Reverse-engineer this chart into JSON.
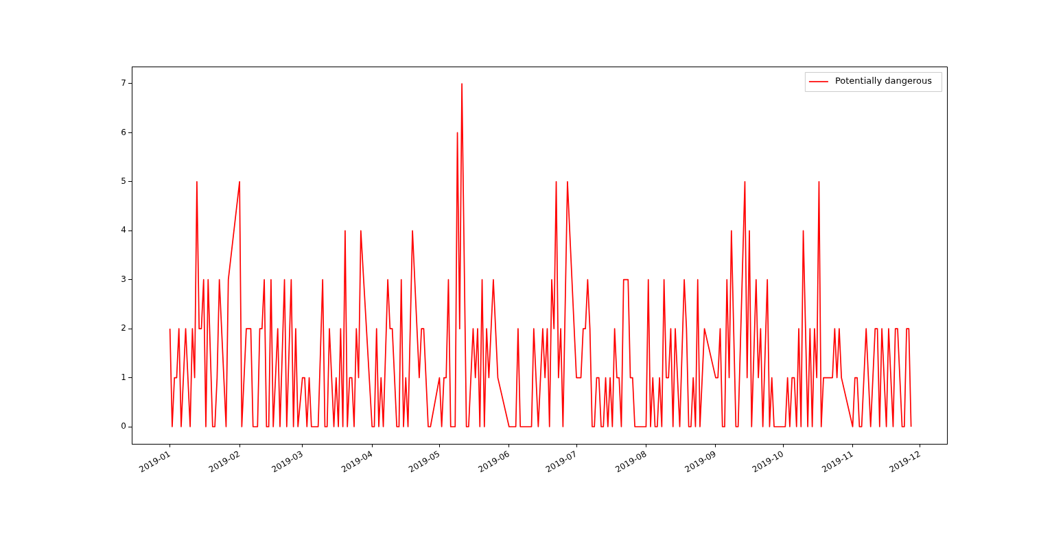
{
  "chart_data": {
    "type": "line",
    "legend": "top right",
    "grid": false,
    "x": [
      "2019-01-01",
      "2019-01-02",
      "2019-01-03",
      "2019-01-04",
      "2019-01-05",
      "2019-01-06",
      "2019-01-08",
      "2019-01-10",
      "2019-01-11",
      "2019-01-12",
      "2019-01-13",
      "2019-01-14",
      "2019-01-15",
      "2019-01-16",
      "2019-01-17",
      "2019-01-18",
      "2019-01-20",
      "2019-01-21",
      "2019-01-22",
      "2019-01-23",
      "2019-01-26",
      "2019-01-27",
      "2019-02-01",
      "2019-02-02",
      "2019-02-04",
      "2019-02-06",
      "2019-02-07",
      "2019-02-09",
      "2019-02-10",
      "2019-02-11",
      "2019-02-12",
      "2019-02-13",
      "2019-02-14",
      "2019-02-15",
      "2019-02-16",
      "2019-02-18",
      "2019-02-19",
      "2019-02-21",
      "2019-02-22",
      "2019-02-24",
      "2019-02-25",
      "2019-02-26",
      "2019-02-27",
      "2019-03-01",
      "2019-03-02",
      "2019-03-03",
      "2019-03-04",
      "2019-03-05",
      "2019-03-08",
      "2019-03-10",
      "2019-03-11",
      "2019-03-12",
      "2019-03-13",
      "2019-03-15",
      "2019-03-16",
      "2019-03-17",
      "2019-03-18",
      "2019-03-19",
      "2019-03-20",
      "2019-03-21",
      "2019-03-22",
      "2019-03-23",
      "2019-03-24",
      "2019-03-25",
      "2019-03-26",
      "2019-03-27",
      "2019-04-01",
      "2019-04-02",
      "2019-04-03",
      "2019-04-04",
      "2019-04-05",
      "2019-04-06",
      "2019-04-08",
      "2019-04-09",
      "2019-04-10",
      "2019-04-12",
      "2019-04-13",
      "2019-04-14",
      "2019-04-15",
      "2019-04-16",
      "2019-04-17",
      "2019-04-19",
      "2019-04-22",
      "2019-04-23",
      "2019-04-24",
      "2019-04-26",
      "2019-04-27",
      "2019-05-01",
      "2019-05-02",
      "2019-05-03",
      "2019-05-04",
      "2019-05-05",
      "2019-05-06",
      "2019-05-08",
      "2019-05-09",
      "2019-05-10",
      "2019-05-11",
      "2019-05-13",
      "2019-05-14",
      "2019-05-16",
      "2019-05-17",
      "2019-05-18",
      "2019-05-19",
      "2019-05-20",
      "2019-05-21",
      "2019-05-22",
      "2019-05-23",
      "2019-05-25",
      "2019-05-27",
      "2019-06-01",
      "2019-06-04",
      "2019-06-05",
      "2019-06-06",
      "2019-06-11",
      "2019-06-12",
      "2019-06-14",
      "2019-06-16",
      "2019-06-17",
      "2019-06-18",
      "2019-06-19",
      "2019-06-20",
      "2019-06-21",
      "2019-06-22",
      "2019-06-23",
      "2019-06-24",
      "2019-06-25",
      "2019-06-27",
      "2019-07-01",
      "2019-07-03",
      "2019-07-04",
      "2019-07-05",
      "2019-07-06",
      "2019-07-07",
      "2019-07-08",
      "2019-07-09",
      "2019-07-10",
      "2019-07-11",
      "2019-07-12",
      "2019-07-13",
      "2019-07-14",
      "2019-07-15",
      "2019-07-16",
      "2019-07-17",
      "2019-07-18",
      "2019-07-19",
      "2019-07-20",
      "2019-07-21",
      "2019-07-22",
      "2019-07-24",
      "2019-07-25",
      "2019-07-26",
      "2019-07-27",
      "2019-08-01",
      "2019-08-02",
      "2019-08-03",
      "2019-08-04",
      "2019-08-05",
      "2019-08-06",
      "2019-08-07",
      "2019-08-08",
      "2019-08-09",
      "2019-08-10",
      "2019-08-11",
      "2019-08-12",
      "2019-08-13",
      "2019-08-14",
      "2019-08-16",
      "2019-08-18",
      "2019-08-19",
      "2019-08-20",
      "2019-08-21",
      "2019-08-22",
      "2019-08-23",
      "2019-08-24",
      "2019-08-25",
      "2019-08-27",
      "2019-09-01",
      "2019-09-02",
      "2019-09-03",
      "2019-09-04",
      "2019-09-05",
      "2019-09-06",
      "2019-09-07",
      "2019-09-08",
      "2019-09-10",
      "2019-09-11",
      "2019-09-14",
      "2019-09-15",
      "2019-09-16",
      "2019-09-17",
      "2019-09-19",
      "2019-09-20",
      "2019-09-21",
      "2019-09-22",
      "2019-09-24",
      "2019-09-25",
      "2019-09-26",
      "2019-09-27",
      "2019-10-02",
      "2019-10-03",
      "2019-10-04",
      "2019-10-05",
      "2019-10-06",
      "2019-10-07",
      "2019-10-08",
      "2019-10-09",
      "2019-10-10",
      "2019-10-12",
      "2019-10-13",
      "2019-10-14",
      "2019-10-15",
      "2019-10-16",
      "2019-10-17",
      "2019-10-18",
      "2019-10-19",
      "2019-10-23",
      "2019-10-24",
      "2019-10-25",
      "2019-10-26",
      "2019-10-27",
      "2019-11-01",
      "2019-11-02",
      "2019-11-03",
      "2019-11-04",
      "2019-11-05",
      "2019-11-07",
      "2019-11-09",
      "2019-11-11",
      "2019-11-12",
      "2019-11-13",
      "2019-11-14",
      "2019-11-16",
      "2019-11-17",
      "2019-11-19",
      "2019-11-20",
      "2019-11-21",
      "2019-11-23",
      "2019-11-24",
      "2019-11-25",
      "2019-11-26",
      "2019-11-27"
    ],
    "series": [
      {
        "name": "Potentially dangerous",
        "color": "#ff0000",
        "values": [
          2,
          0,
          1,
          1,
          2,
          0,
          2,
          0,
          2,
          1,
          5,
          2,
          2,
          3,
          0,
          3,
          0,
          0,
          1,
          3,
          0,
          3,
          5,
          0,
          2,
          2,
          0,
          0,
          2,
          2,
          3,
          0,
          0,
          3,
          0,
          2,
          0,
          3,
          0,
          3,
          0,
          2,
          0,
          1,
          1,
          0,
          1,
          0,
          0,
          3,
          0,
          0,
          2,
          0,
          1,
          0,
          2,
          0,
          4,
          0,
          1,
          1,
          0,
          2,
          1,
          4,
          0,
          0,
          2,
          0,
          1,
          0,
          3,
          2,
          2,
          0,
          0,
          3,
          0,
          1,
          0,
          4,
          1,
          2,
          2,
          0,
          0,
          1,
          0,
          1,
          1,
          3,
          0,
          0,
          6,
          2,
          7,
          0,
          0,
          2,
          1,
          2,
          0,
          3,
          0,
          2,
          1,
          3,
          1,
          0,
          0,
          2,
          0,
          0,
          2,
          0,
          2,
          1,
          2,
          0,
          3,
          2,
          5,
          1,
          2,
          0,
          5,
          1,
          1,
          2,
          2,
          3,
          2,
          0,
          0,
          1,
          1,
          0,
          0,
          1,
          0,
          1,
          0,
          2,
          1,
          1,
          0,
          3,
          3,
          1,
          1,
          0,
          0,
          3,
          0,
          1,
          0,
          0,
          1,
          0,
          3,
          1,
          1,
          2,
          0,
          2,
          0,
          3,
          2,
          0,
          0,
          1,
          0,
          3,
          0,
          2,
          1,
          1,
          2,
          0,
          0,
          3,
          1,
          4,
          0,
          0,
          5,
          1,
          4,
          0,
          3,
          1,
          2,
          0,
          3,
          0,
          1,
          0,
          0,
          1,
          0,
          1,
          1,
          0,
          2,
          0,
          4,
          0,
          2,
          0,
          2,
          1,
          5,
          0,
          1,
          1,
          2,
          1,
          2,
          1,
          0,
          1,
          1,
          0,
          0,
          2,
          0,
          2,
          2,
          0,
          2,
          0,
          2,
          0,
          2,
          2,
          0,
          0,
          2,
          2,
          0
        ]
      }
    ],
    "xlim": [
      "2018-12-15",
      "2019-12-13"
    ],
    "xticks": [
      {
        "value": "2019-01-01",
        "label": "2019-01"
      },
      {
        "value": "2019-02-01",
        "label": "2019-02"
      },
      {
        "value": "2019-03-01",
        "label": "2019-03"
      },
      {
        "value": "2019-04-01",
        "label": "2019-04"
      },
      {
        "value": "2019-05-01",
        "label": "2019-05"
      },
      {
        "value": "2019-06-01",
        "label": "2019-06"
      },
      {
        "value": "2019-07-01",
        "label": "2019-07"
      },
      {
        "value": "2019-08-01",
        "label": "2019-08"
      },
      {
        "value": "2019-09-01",
        "label": "2019-09"
      },
      {
        "value": "2019-10-01",
        "label": "2019-10"
      },
      {
        "value": "2019-11-01",
        "label": "2019-11"
      },
      {
        "value": "2019-12-01",
        "label": "2019-12"
      }
    ],
    "ylim": [
      -0.35,
      7.35
    ],
    "yticks": [
      0,
      1,
      2,
      3,
      4,
      5,
      6,
      7
    ]
  }
}
